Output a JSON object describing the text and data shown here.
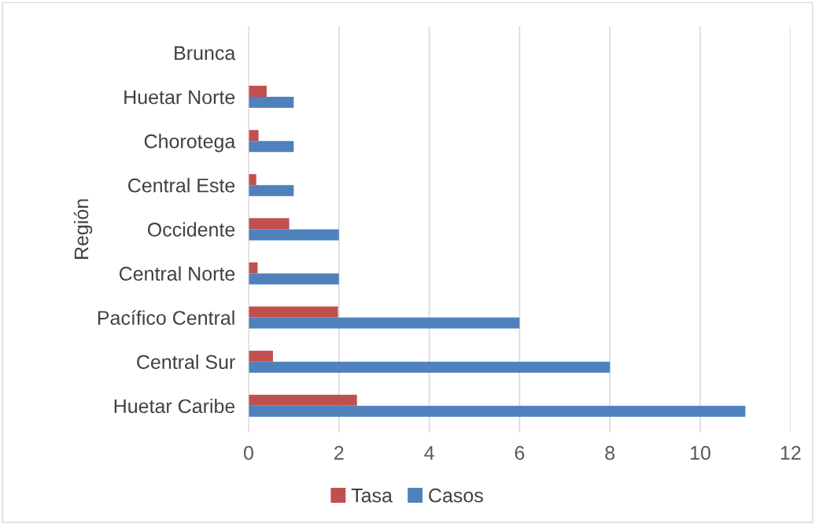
{
  "chart_data": {
    "type": "bar",
    "orientation": "horizontal",
    "ylabel": "Región",
    "categories": [
      "Brunca",
      "Huetar Norte",
      "Chorotega",
      "Central Este",
      "Occidente",
      "Central Norte",
      "Pacífico Central",
      "Central Sur",
      "Huetar Caribe"
    ],
    "series": [
      {
        "name": "Tasa",
        "color": "#c0504d",
        "values": [
          0,
          0.4,
          0.22,
          0.17,
          0.9,
          0.2,
          1.98,
          0.54,
          2.4
        ]
      },
      {
        "name": "Casos",
        "color": "#4f81bd",
        "values": [
          0,
          1,
          1,
          1,
          2,
          2,
          6,
          8,
          11
        ]
      }
    ],
    "xlim": [
      0,
      12
    ],
    "xticks": [
      0,
      2,
      4,
      6,
      8,
      10,
      12
    ],
    "grid": "x",
    "legend": "bottom"
  }
}
